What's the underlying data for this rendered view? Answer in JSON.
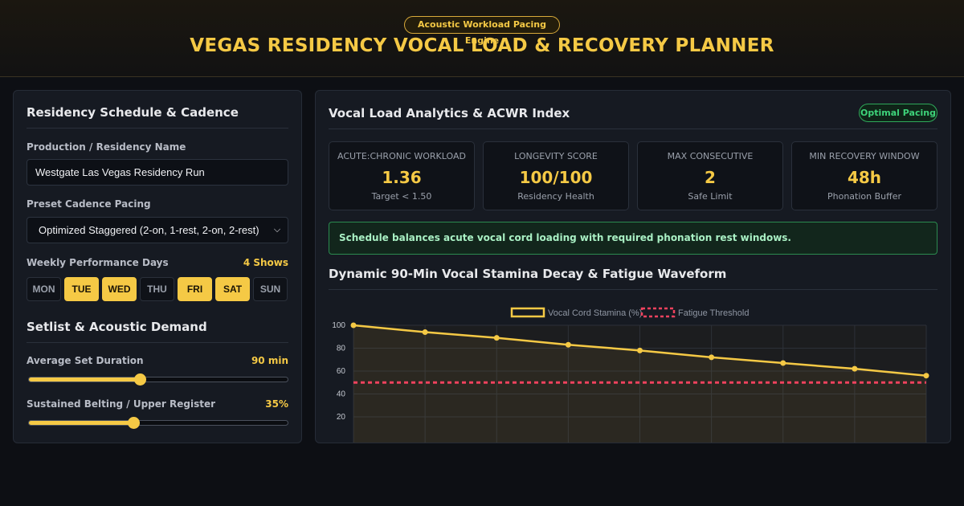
{
  "header": {
    "badge": "Acoustic Workload Pacing Engine",
    "title": "VEGAS RESIDENCY VOCAL LOAD & RECOVERY PLANNER"
  },
  "left": {
    "schedule_title": "Residency Schedule & Cadence",
    "production_label": "Production / Residency Name",
    "production_value": "Westgate Las Vegas Residency Run",
    "cadence_label": "Preset Cadence Pacing",
    "cadence_value": "Optimized Staggered (2-on, 1-rest, 2-on, 2-rest)",
    "days_label": "Weekly Performance Days",
    "days_count": "4 Shows",
    "days": [
      {
        "label": "MON",
        "active": false
      },
      {
        "label": "TUE",
        "active": true
      },
      {
        "label": "WED",
        "active": true
      },
      {
        "label": "THU",
        "active": false
      },
      {
        "label": "FRI",
        "active": true
      },
      {
        "label": "SAT",
        "active": true
      },
      {
        "label": "SUN",
        "active": false
      }
    ],
    "setlist_title": "Setlist & Acoustic Demand",
    "duration_label": "Average Set Duration",
    "duration_value": "90 min",
    "duration_fraction": 0.43,
    "belting_label": "Sustained Belting / Upper Register",
    "belting_value": "35%",
    "belting_fraction": 0.405
  },
  "right": {
    "title": "Vocal Load Analytics & ACWR Index",
    "status": "Optimal Pacing",
    "kpis": [
      {
        "label": "ACUTE:CHRONIC WORKLOAD",
        "value": "1.36",
        "sub": "Target < 1.50"
      },
      {
        "label": "LONGEVITY SCORE",
        "value": "100/100",
        "sub": "Residency Health"
      },
      {
        "label": "MAX CONSECUTIVE",
        "value": "2",
        "sub": "Safe Limit"
      },
      {
        "label": "MIN RECOVERY WINDOW",
        "value": "48h",
        "sub": "Phonation Buffer"
      }
    ],
    "alert": "Schedule balances acute vocal cord loading with required phonation rest windows.",
    "chart_title": "Dynamic 90-Min Vocal Stamina Decay & Fatigue Waveform"
  },
  "chart_data": {
    "type": "line",
    "title": "",
    "xlabel": "",
    "ylabel": "",
    "ylim": [
      0,
      100
    ],
    "yticks": [
      20,
      40,
      60,
      80,
      100
    ],
    "series": [
      {
        "name": "Vocal Cord Stamina (%)",
        "color": "#f5c945",
        "style": "solid",
        "values": [
          100,
          94,
          89,
          83,
          78,
          72,
          67,
          62,
          56
        ]
      },
      {
        "name": "Fatigue Threshold",
        "color": "#f0425e",
        "style": "dashed",
        "values": [
          50,
          50,
          50,
          50,
          50,
          50,
          50,
          50,
          50
        ]
      }
    ]
  }
}
